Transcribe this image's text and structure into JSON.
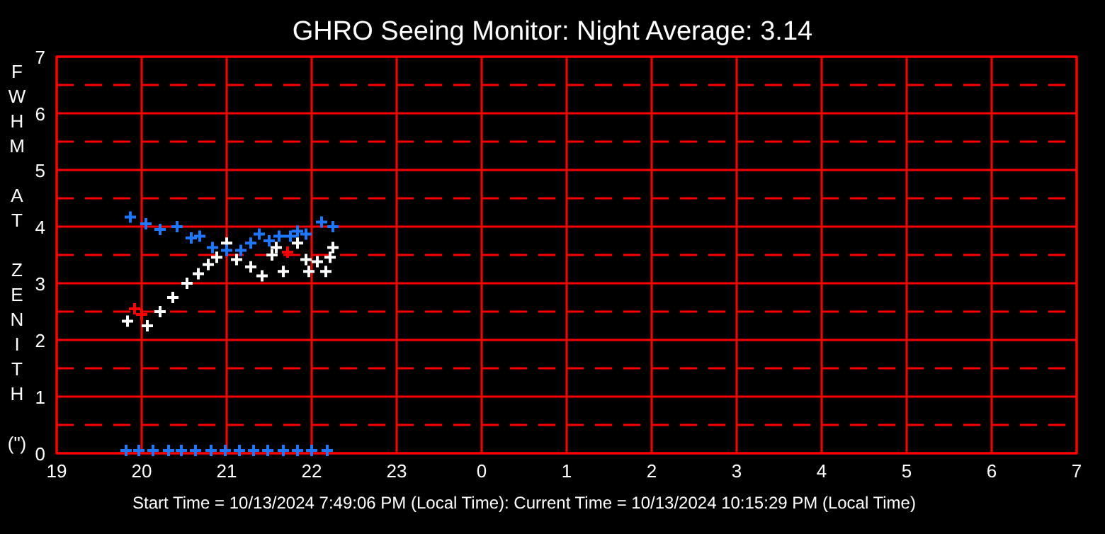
{
  "chart_data": {
    "type": "scatter",
    "title": "GHRO Seeing Monitor: Night Average: 3.14",
    "ylabel": "FWHM AT ZENITH (\")",
    "annotations": [
      "Start Time = 10/13/2024 7:49:06 PM (Local Time): Current Time = 10/13/2024 10:15:29 PM (Local Time)"
    ],
    "xlim": [
      "2024-10-13T19:00",
      "2024-10-14T07:00"
    ],
    "xticks": [
      {
        "value": "2024-10-13T19:00",
        "label": "19"
      },
      {
        "value": "2024-10-13T20:00",
        "label": "20"
      },
      {
        "value": "2024-10-13T21:00",
        "label": "21"
      },
      {
        "value": "2024-10-13T22:00",
        "label": "22"
      },
      {
        "value": "2024-10-13T23:00",
        "label": "23"
      },
      {
        "value": "2024-10-14T00:00",
        "label": "0"
      },
      {
        "value": "2024-10-14T01:00",
        "label": "1"
      },
      {
        "value": "2024-10-14T02:00",
        "label": "2"
      },
      {
        "value": "2024-10-14T03:00",
        "label": "3"
      },
      {
        "value": "2024-10-14T04:00",
        "label": "4"
      },
      {
        "value": "2024-10-14T05:00",
        "label": "5"
      },
      {
        "value": "2024-10-14T06:00",
        "label": "6"
      },
      {
        "value": "2024-10-14T07:00",
        "label": "7"
      }
    ],
    "ylim": [
      0,
      7
    ],
    "yticks": [
      0,
      {
        "value": 0.5,
        "label": null
      },
      1,
      {
        "value": 1.5,
        "label": null
      },
      2,
      {
        "value": 2.5,
        "label": null
      },
      3,
      {
        "value": 3.5,
        "label": null
      },
      4,
      {
        "value": 4.5,
        "label": null
      },
      5,
      {
        "value": 5.5,
        "label": null
      },
      6,
      {
        "value": 6.5,
        "label": null
      },
      7
    ],
    "grid": true,
    "marker": "cross",
    "series": [
      {
        "color": "#ffffff",
        "x": [
          "2024-10-13T19:50",
          "2024-10-13T20:04",
          "2024-10-13T20:13",
          "2024-10-13T20:22",
          "2024-10-13T20:32",
          "2024-10-13T20:40",
          "2024-10-13T20:47",
          "2024-10-13T20:53",
          "2024-10-13T21:00",
          "2024-10-13T21:07",
          "2024-10-13T21:17",
          "2024-10-13T21:25",
          "2024-10-13T21:32",
          "2024-10-13T21:35",
          "2024-10-13T21:40",
          "2024-10-13T21:50",
          "2024-10-13T21:56",
          "2024-10-13T21:58",
          "2024-10-13T22:04",
          "2024-10-13T22:10",
          "2024-10-13T22:13",
          "2024-10-13T22:15"
        ],
        "values": [
          2.33,
          2.25,
          2.5,
          2.75,
          3.0,
          3.17,
          3.33,
          3.46,
          3.71,
          3.42,
          3.29,
          3.13,
          3.5,
          3.63,
          3.21,
          3.71,
          3.42,
          3.21,
          3.38,
          3.21,
          3.46,
          3.63
        ]
      },
      {
        "color": "#ff0000",
        "x": [
          "2024-10-13T19:55",
          "2024-10-13T20:00",
          "2024-10-13T21:43"
        ],
        "values": [
          2.55,
          2.45,
          3.55
        ]
      },
      {
        "color": "#1e78ff",
        "x": [
          "2024-10-13T19:52",
          "2024-10-13T20:03",
          "2024-10-13T20:13",
          "2024-10-13T20:25",
          "2024-10-13T20:35",
          "2024-10-13T20:41",
          "2024-10-13T20:50",
          "2024-10-13T21:00",
          "2024-10-13T21:10",
          "2024-10-13T21:17",
          "2024-10-13T21:23",
          "2024-10-13T21:30",
          "2024-10-13T21:37",
          "2024-10-13T21:45",
          "2024-10-13T21:50",
          "2024-10-13T21:56",
          "2024-10-13T22:07",
          "2024-10-13T22:15"
        ],
        "values": [
          4.17,
          4.05,
          3.95,
          4.0,
          3.8,
          3.83,
          3.63,
          3.58,
          3.58,
          3.71,
          3.87,
          3.75,
          3.83,
          3.83,
          3.92,
          3.87,
          4.08,
          4.0
        ]
      },
      {
        "color": "#1e78ff",
        "x": [
          "2024-10-13T19:49",
          "2024-10-13T19:58",
          "2024-10-13T20:08",
          "2024-10-13T20:19",
          "2024-10-13T20:28",
          "2024-10-13T20:38",
          "2024-10-13T20:49",
          "2024-10-13T20:59",
          "2024-10-13T21:09",
          "2024-10-13T21:19",
          "2024-10-13T21:29",
          "2024-10-13T21:40",
          "2024-10-13T21:50",
          "2024-10-13T22:00",
          "2024-10-13T22:11"
        ],
        "values": [
          0.05,
          0.05,
          0.05,
          0.05,
          0.05,
          0.05,
          0.05,
          0.05,
          0.05,
          0.05,
          0.05,
          0.05,
          0.05,
          0.05,
          0.05
        ]
      }
    ]
  }
}
